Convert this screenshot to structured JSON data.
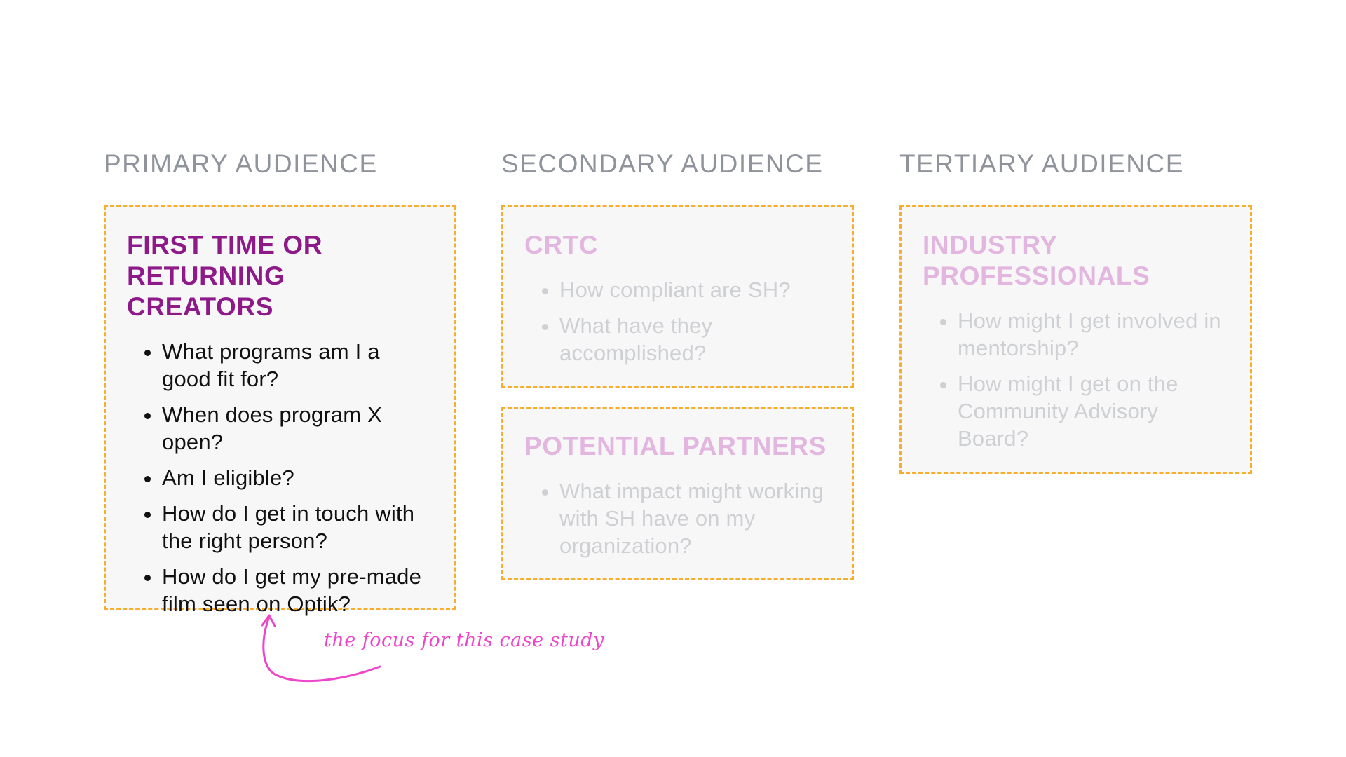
{
  "columns": [
    {
      "heading": "PRIMARY AUDIENCE",
      "cards": [
        {
          "title": "FIRST TIME OR RETURNING CREATORS",
          "questions": [
            "What programs am I a good fit for?",
            "When does program X open?",
            "Am I eligible?",
            "How do I get in touch with the right person?",
            "How do I get my pre-made film seen on Optik?"
          ]
        }
      ]
    },
    {
      "heading": "SECONDARY AUDIENCE",
      "cards": [
        {
          "title": "CRTC",
          "questions": [
            "How compliant are SH?",
            "What have they accomplished?"
          ]
        },
        {
          "title": "POTENTIAL PARTNERS",
          "questions": [
            "What impact might working with SH have on my organization?"
          ]
        }
      ]
    },
    {
      "heading": "TERTIARY AUDIENCE",
      "cards": [
        {
          "title": "INDUSTRY PROFESSIONALS",
          "questions": [
            "How might I get involved in mentorship?",
            "How might I get on the Community Advisory Board?"
          ]
        }
      ]
    }
  ],
  "annotation": "the focus for this case study",
  "colors": {
    "heading": "#8f939b",
    "active_title": "#8e1a8a",
    "dim_title": "#e3b6e0",
    "dim_text": "#cfd0d4",
    "card_border": "#f6ae2d",
    "card_bg": "#f7f7f8",
    "annotation": "#ee46c8"
  }
}
